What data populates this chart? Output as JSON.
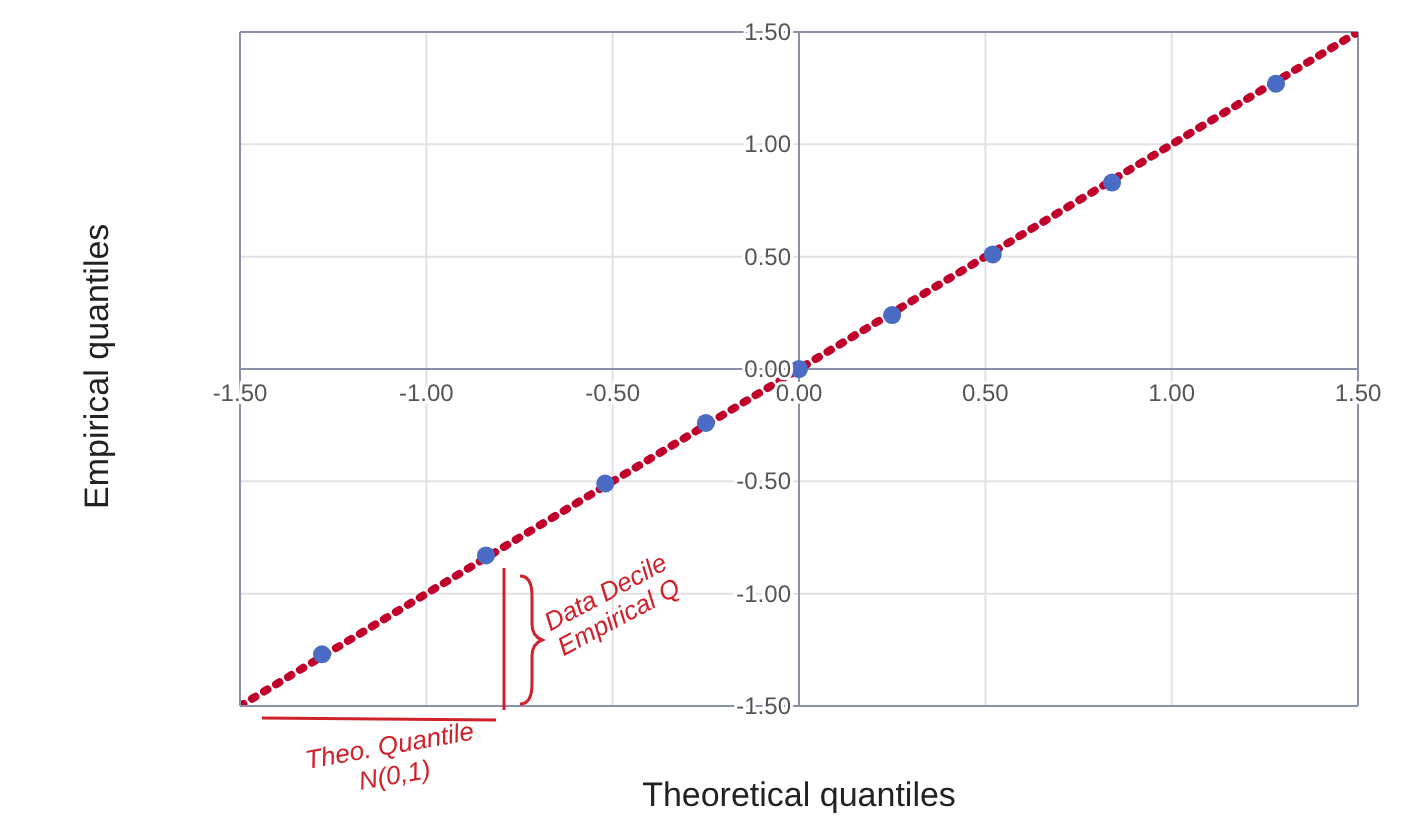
{
  "chart_data": {
    "type": "scatter",
    "xlabel": "Theoretical quantiles",
    "ylabel": "Empirical quantiles",
    "x": [
      -1.28,
      -0.84,
      -0.52,
      -0.25,
      0,
      0.25,
      0.52,
      0.84,
      1.28
    ],
    "series": [
      {
        "color": "#4a6cc4",
        "values": [
          -1.27,
          -0.83,
          -0.51,
          -0.24,
          0,
          0.24,
          0.51,
          0.83,
          1.27
        ],
        "marker": "circle"
      },
      {
        "type": "line",
        "color": "#c0002a",
        "x": [
          -1.5,
          1.5
        ],
        "values": [
          -1.5,
          1.5
        ],
        "line_style": "dotted",
        "marker": "none"
      }
    ],
    "xlim": [
      -1.5,
      1.5
    ],
    "ylim": [
      -1.5,
      1.5
    ],
    "xticks": [
      {
        "value": -1.5,
        "label": "-1.50"
      },
      {
        "value": -1,
        "label": "-1.00"
      },
      {
        "value": -0.5,
        "label": "-0.50"
      },
      {
        "value": 0,
        "label": "0.00"
      },
      {
        "value": 0.5,
        "label": "0.50"
      },
      {
        "value": 1,
        "label": "1.00"
      },
      {
        "value": 1.5,
        "label": "1.50"
      }
    ],
    "yticks": [
      {
        "value": -1.5,
        "label": "-1.50"
      },
      {
        "value": -1,
        "label": "-1.00"
      },
      {
        "value": -0.5,
        "label": "-0.50"
      },
      {
        "value": 0,
        "label": "0.00"
      },
      {
        "value": 0.5,
        "label": "0.50"
      },
      {
        "value": 1,
        "label": "1.00"
      },
      {
        "value": 1.5,
        "label": "1.50"
      }
    ],
    "grid": true,
    "legend": false,
    "annotations": [
      "Data Decile Empirical Q",
      "Theo. Quantile N(0,1)"
    ]
  }
}
